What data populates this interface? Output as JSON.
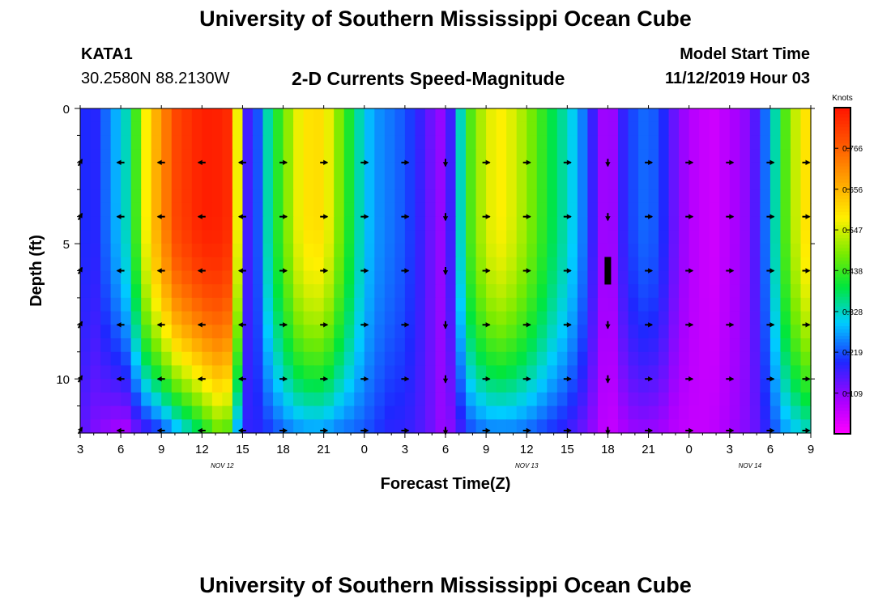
{
  "header": {
    "title": "University of Southern Mississippi Ocean Cube",
    "station": "KATA1",
    "coordinates": "30.2580N 88.2130W",
    "subtitle": "2-D Currents Speed-Magnitude",
    "model_start_label": "Model Start Time",
    "model_start_value": "11/12/2019 Hour 03"
  },
  "footer": {
    "title": "University of Southern Mississippi Ocean Cube"
  },
  "chart_data": {
    "type": "heatmap",
    "title": "2-D Currents Speed-Magnitude",
    "xlabel": "Forecast Time(Z)",
    "ylabel": "Depth (ft)",
    "x_start_hour": 3,
    "x_end_hour": 57,
    "x_tick_hours": [
      3,
      6,
      9,
      12,
      15,
      18,
      21,
      24,
      27,
      30,
      33,
      36,
      39,
      42,
      45,
      48,
      51,
      54,
      57
    ],
    "x_tick_labels": [
      "3",
      "6",
      "9",
      "12",
      "15",
      "18",
      "21",
      "0",
      "3",
      "6",
      "9",
      "12",
      "15",
      "18",
      "21",
      "0",
      "3",
      "6",
      "9"
    ],
    "date_labels": [
      {
        "hour": 13.5,
        "label": "NOV 12"
      },
      {
        "hour": 36,
        "label": "NOV 13"
      },
      {
        "hour": 52.5,
        "label": "NOV 14"
      }
    ],
    "ylim": [
      0,
      12
    ],
    "y_tick_values": [
      0,
      5,
      10
    ],
    "y_tick_labels": [
      "0",
      "5",
      "10"
    ],
    "colorbar": {
      "title": "Knots",
      "min": 0,
      "max": 0.875,
      "tick_values": [
        0.766,
        0.656,
        0.547,
        0.438,
        0.328,
        0.219,
        0.109
      ],
      "tick_labels": [
        "0.766",
        "0.656",
        "0.547",
        "0.438",
        "0.328",
        "0.219",
        "0.109"
      ]
    },
    "speed_profile_by_hour": [
      {
        "h": 3.0,
        "surf": 0.2,
        "bot": 0.15
      },
      {
        "h": 4.0,
        "surf": 0.18,
        "bot": 0.12
      },
      {
        "h": 5.0,
        "surf": 0.24,
        "bot": 0.1
      },
      {
        "h": 6.0,
        "surf": 0.3,
        "bot": 0.08
      },
      {
        "h": 6.5,
        "surf": 0.34,
        "bot": 0.08
      },
      {
        "h": 7.0,
        "surf": 0.42,
        "bot": 0.12
      },
      {
        "h": 8.0,
        "surf": 0.6,
        "bot": 0.16
      },
      {
        "h": 9.0,
        "surf": 0.7,
        "bot": 0.2
      },
      {
        "h": 10.0,
        "surf": 0.8,
        "bot": 0.26
      },
      {
        "h": 12.0,
        "surf": 0.86,
        "bot": 0.38
      },
      {
        "h": 13.0,
        "surf": 0.86,
        "bot": 0.46
      },
      {
        "h": 14.0,
        "surf": 0.84,
        "bot": 0.44
      },
      {
        "h": 14.5,
        "surf": 0.66,
        "bot": 0.3
      },
      {
        "h": 15.0,
        "surf": 0.3,
        "bot": 0.18
      },
      {
        "h": 15.5,
        "surf": 0.12,
        "bot": 0.18
      },
      {
        "h": 16.0,
        "surf": 0.2,
        "bot": 0.18
      },
      {
        "h": 17.0,
        "surf": 0.36,
        "bot": 0.2
      },
      {
        "h": 18.0,
        "surf": 0.46,
        "bot": 0.23
      },
      {
        "h": 19.0,
        "surf": 0.56,
        "bot": 0.25
      },
      {
        "h": 20.0,
        "surf": 0.6,
        "bot": 0.26
      },
      {
        "h": 21.0,
        "surf": 0.6,
        "bot": 0.26
      },
      {
        "h": 22.0,
        "surf": 0.5,
        "bot": 0.24
      },
      {
        "h": 23.0,
        "surf": 0.4,
        "bot": 0.23
      },
      {
        "h": 24.0,
        "surf": 0.3,
        "bot": 0.22
      },
      {
        "h": 25.0,
        "surf": 0.26,
        "bot": 0.2
      },
      {
        "h": 26.0,
        "surf": 0.24,
        "bot": 0.18
      },
      {
        "h": 27.0,
        "surf": 0.22,
        "bot": 0.18
      },
      {
        "h": 28.0,
        "surf": 0.18,
        "bot": 0.16
      },
      {
        "h": 29.0,
        "surf": 0.13,
        "bot": 0.13
      },
      {
        "h": 30.0,
        "surf": 0.09,
        "bot": 0.09
      },
      {
        "h": 31.0,
        "surf": 0.3,
        "bot": 0.15
      },
      {
        "h": 31.5,
        "surf": 0.42,
        "bot": 0.2
      },
      {
        "h": 33.0,
        "surf": 0.55,
        "bot": 0.24
      },
      {
        "h": 34.0,
        "surf": 0.58,
        "bot": 0.24
      },
      {
        "h": 35.0,
        "surf": 0.55,
        "bot": 0.24
      },
      {
        "h": 36.0,
        "surf": 0.5,
        "bot": 0.23
      },
      {
        "h": 37.0,
        "surf": 0.44,
        "bot": 0.21
      },
      {
        "h": 38.0,
        "surf": 0.38,
        "bot": 0.19
      },
      {
        "h": 39.0,
        "surf": 0.33,
        "bot": 0.17
      },
      {
        "h": 40.0,
        "surf": 0.26,
        "bot": 0.14
      },
      {
        "h": 41.0,
        "surf": 0.16,
        "bot": 0.1
      },
      {
        "h": 42.0,
        "surf": 0.06,
        "bot": 0.05
      },
      {
        "h": 43.0,
        "surf": 0.17,
        "bot": 0.08
      },
      {
        "h": 44.0,
        "surf": 0.22,
        "bot": 0.1
      },
      {
        "h": 45.0,
        "surf": 0.24,
        "bot": 0.1
      },
      {
        "h": 46.0,
        "surf": 0.2,
        "bot": 0.09
      },
      {
        "h": 47.0,
        "surf": 0.13,
        "bot": 0.07
      },
      {
        "h": 48.0,
        "surf": 0.08,
        "bot": 0.06
      },
      {
        "h": 49.0,
        "surf": 0.06,
        "bot": 0.06
      },
      {
        "h": 50.0,
        "surf": 0.05,
        "bot": 0.07
      },
      {
        "h": 51.0,
        "surf": 0.08,
        "bot": 0.09
      },
      {
        "h": 52.0,
        "surf": 0.1,
        "bot": 0.11
      },
      {
        "h": 53.0,
        "surf": 0.16,
        "bot": 0.14
      },
      {
        "h": 54.0,
        "surf": 0.28,
        "bot": 0.2
      },
      {
        "h": 55.0,
        "surf": 0.44,
        "bot": 0.26
      },
      {
        "h": 56.0,
        "surf": 0.55,
        "bot": 0.3
      },
      {
        "h": 57.0,
        "surf": 0.62,
        "bot": 0.33
      }
    ],
    "arrow_depths_ft": [
      2,
      4,
      6,
      8,
      10,
      12
    ],
    "arrow_hours": [
      3,
      6,
      9,
      12,
      15,
      18,
      21,
      24,
      27,
      30,
      33,
      36,
      39,
      42,
      45,
      48,
      51,
      54,
      57
    ],
    "arrow_directions_deg": [
      60,
      180,
      180,
      180,
      180,
      0,
      0,
      0,
      0,
      270,
      0,
      0,
      0,
      270,
      0,
      0,
      0,
      0,
      0
    ],
    "highlight_marker": {
      "hour": 42,
      "depth_ft": 6
    }
  }
}
